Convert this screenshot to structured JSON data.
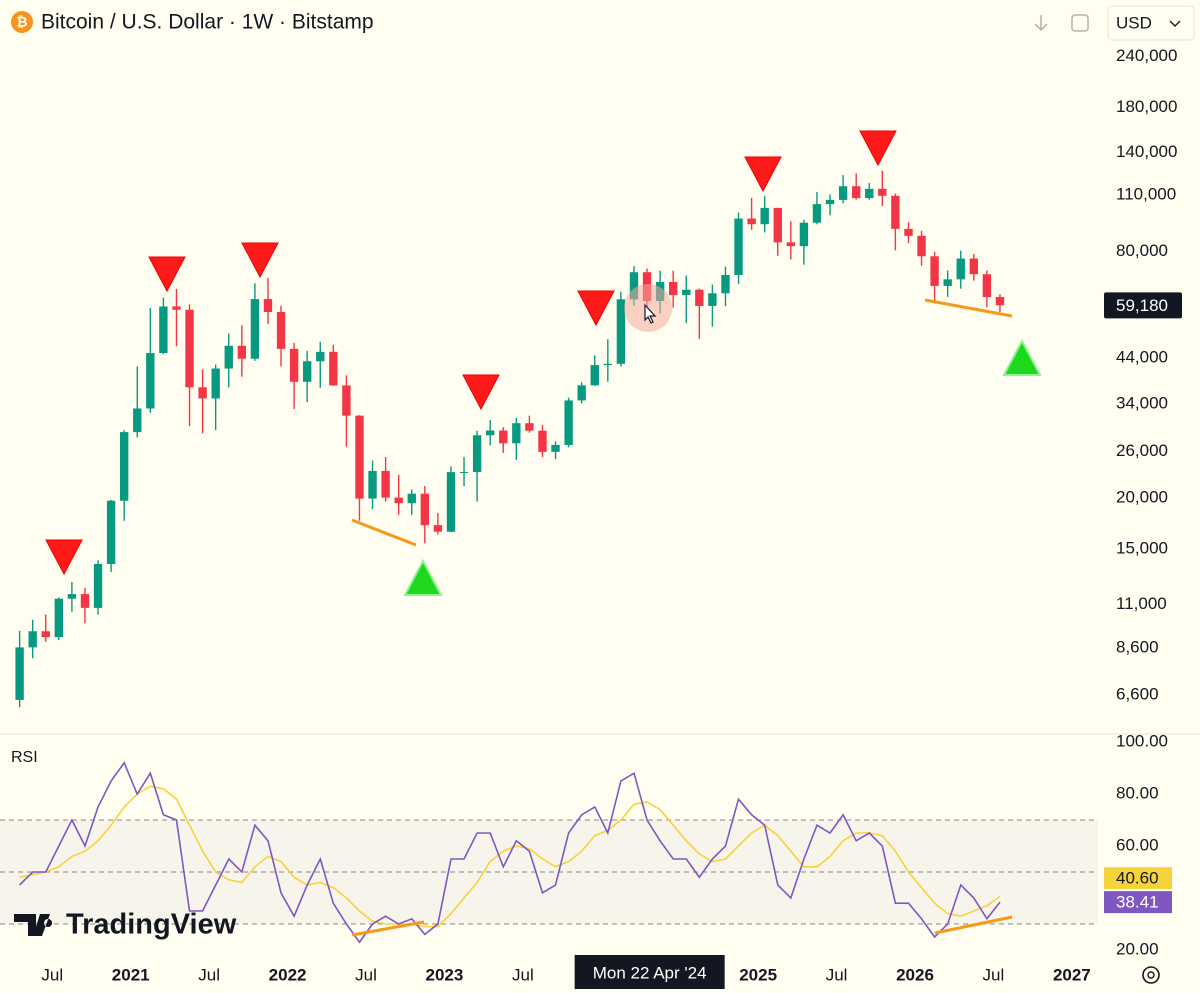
{
  "header": {
    "title": "Bitcoin / U.S. Dollar · 1W · Bitstamp",
    "currency": "USD"
  },
  "watermark": "TradingView",
  "chart_data": [
    {
      "type": "candlestick",
      "x": [
        "2020-04",
        "2020-05",
        "2020-06",
        "2020-07",
        "2020-08",
        "2020-09",
        "2020-10",
        "2020-11",
        "2020-12",
        "2021-01",
        "2021-02",
        "2021-03",
        "2021-04",
        "2021-05",
        "2021-06",
        "2021-07",
        "2021-08",
        "2021-09",
        "2021-10",
        "2021-11",
        "2021-12",
        "2022-01",
        "2022-02",
        "2022-03",
        "2022-04",
        "2022-05",
        "2022-06",
        "2022-07",
        "2022-08",
        "2022-09",
        "2022-10",
        "2022-11",
        "2022-12",
        "2023-01",
        "2023-02",
        "2023-03",
        "2023-04",
        "2023-05",
        "2023-06",
        "2023-07",
        "2023-08",
        "2023-09",
        "2023-10",
        "2023-11",
        "2023-12",
        "2024-01",
        "2024-02",
        "2024-03",
        "2024-04",
        "2024-05",
        "2024-06",
        "2024-07",
        "2024-08",
        "2024-09",
        "2024-10",
        "2024-11",
        "2024-12",
        "2025-01",
        "2025-02",
        "2025-03",
        "2025-04",
        "2025-05",
        "2025-06",
        "2025-07",
        "2025-08",
        "2025-09",
        "2025-10",
        "2025-11",
        "2025-12",
        "2026-01",
        "2026-02",
        "2026-03",
        "2026-04",
        "2026-05",
        "2026-06",
        "2026-07"
      ],
      "open": [
        6420,
        8630,
        9450,
        9140,
        11350,
        11650,
        10780,
        13800,
        19700,
        28990,
        33110,
        45240,
        58800,
        57720,
        37300,
        35040,
        41460,
        47130,
        43820,
        61300,
        57000,
        46310,
        38480,
        43190,
        45540,
        37700,
        31800,
        19940,
        23300,
        20050,
        19430,
        20500,
        17170,
        16550,
        23140,
        23150,
        28480,
        29250,
        27220,
        30480,
        29230,
        25940,
        26970,
        34650,
        37720,
        42280,
        42580,
        61200,
        71300,
        60640,
        67500,
        62680,
        64620,
        58970,
        63330,
        70220,
        96450,
        93430,
        102400,
        84350,
        82550,
        94200,
        104600,
        107100,
        115700,
        108200,
        114000,
        109600,
        91000,
        87500,
        78000,
        66000,
        68500,
        77000,
        70500,
        62000
      ],
      "high": [
        9470,
        10080,
        10380,
        11430,
        12470,
        12070,
        14100,
        19800,
        29300,
        41950,
        58350,
        61800,
        64900,
        59500,
        41300,
        42400,
        50500,
        52900,
        67000,
        69000,
        59000,
        47900,
        45800,
        48200,
        47400,
        39900,
        31900,
        24700,
        25200,
        22800,
        21000,
        21400,
        18400,
        23900,
        25200,
        29200,
        31000,
        29800,
        31400,
        31800,
        30200,
        27500,
        35200,
        38400,
        44700,
        48900,
        63900,
        73800,
        72800,
        71900,
        71900,
        70000,
        65000,
        66500,
        73600,
        99800,
        108300,
        109400,
        102500,
        95000,
        95800,
        112000,
        110500,
        123200,
        124400,
        117900,
        126200,
        111000,
        94500,
        90000,
        80000,
        72000,
        80500,
        79000,
        72000,
        63000
      ],
      "low": [
        6160,
        8120,
        8900,
        8990,
        10540,
        9880,
        10380,
        13200,
        17600,
        28130,
        32300,
        45000,
        47000,
        30000,
        28800,
        29300,
        37300,
        39600,
        43300,
        53300,
        42000,
        33000,
        34300,
        37200,
        37600,
        26700,
        17600,
        18800,
        19600,
        18200,
        18200,
        15500,
        16300,
        16500,
        21400,
        19600,
        26900,
        25800,
        24800,
        28900,
        25200,
        24900,
        26600,
        34100,
        37600,
        38500,
        41900,
        59000,
        56500,
        56600,
        58400,
        53500,
        49000,
        52500,
        58900,
        66800,
        90500,
        89200,
        78200,
        76600,
        74400,
        93400,
        98200,
        105100,
        107300,
        107300,
        103500,
        80600,
        84000,
        74000,
        60000,
        62000,
        65000,
        68000,
        58500,
        57000
      ],
      "close": [
        8630,
        9450,
        9140,
        11350,
        11650,
        10780,
        13800,
        19700,
        28990,
        33110,
        45240,
        58800,
        57720,
        37300,
        35040,
        41460,
        47130,
        43820,
        61300,
        57000,
        46310,
        38480,
        43190,
        45540,
        37700,
        31800,
        19940,
        23300,
        20050,
        19430,
        20500,
        17170,
        16550,
        23140,
        23150,
        28480,
        29250,
        27220,
        30480,
        29230,
        25940,
        26970,
        34650,
        37720,
        42280,
        42580,
        61200,
        71300,
        60640,
        67500,
        62680,
        64620,
        58970,
        63330,
        70220,
        96450,
        93430,
        102400,
        84350,
        82550,
        94200,
        104600,
        107100,
        115700,
        108200,
        114000,
        109600,
        91000,
        87500,
        78000,
        66000,
        68500,
        77000,
        70500,
        62000,
        59180
      ],
      "up_color": "#089981",
      "down_color": "#f23645",
      "log_scale": true,
      "grid": false,
      "ylim": [
        5330,
        330000
      ],
      "yticks": [
        {
          "value": 240000,
          "label": "240,000"
        },
        {
          "value": 180000,
          "label": "180,000"
        },
        {
          "value": 140000,
          "label": "140,000"
        },
        {
          "value": 110000,
          "label": "110,000"
        },
        {
          "value": 80000,
          "label": "80,000"
        },
        {
          "value": 44000,
          "label": "44,000"
        },
        {
          "value": 34000,
          "label": "34,000"
        },
        {
          "value": 26000,
          "label": "26,000"
        },
        {
          "value": 20000,
          "label": "20,000"
        },
        {
          "value": 15000,
          "label": "15,000"
        },
        {
          "value": 11000,
          "label": "11,000"
        },
        {
          "value": 8600,
          "label": "8,600"
        },
        {
          "value": 6600,
          "label": "6,600"
        }
      ],
      "last_price": {
        "value": 59180,
        "label": "59,180"
      },
      "xlim": [
        "2020-03",
        "2027-03"
      ],
      "xticks": [
        {
          "value": "2020-07",
          "label": "Jul"
        },
        {
          "value": "2021-01",
          "label": "2021"
        },
        {
          "value": "2021-07",
          "label": "Jul"
        },
        {
          "value": "2022-01",
          "label": "2022"
        },
        {
          "value": "2022-07",
          "label": "Jul"
        },
        {
          "value": "2023-01",
          "label": "2023"
        },
        {
          "value": "2023-07",
          "label": "Jul"
        },
        {
          "value": "2025-01",
          "label": "2025"
        },
        {
          "value": "2025-07",
          "label": "Jul"
        },
        {
          "value": "2026-01",
          "label": "2026"
        },
        {
          "value": "2026-07",
          "label": "Jul"
        },
        {
          "value": "2027-01",
          "label": "2027"
        }
      ],
      "crosshair": {
        "x": "2024-04",
        "label": "Mon 22 Apr '24"
      }
    },
    {
      "type": "line",
      "title": "RSI",
      "x": [
        "2020-04",
        "2020-05",
        "2020-06",
        "2020-07",
        "2020-08",
        "2020-09",
        "2020-10",
        "2020-11",
        "2020-12",
        "2021-01",
        "2021-02",
        "2021-03",
        "2021-04",
        "2021-05",
        "2021-06",
        "2021-07",
        "2021-08",
        "2021-09",
        "2021-10",
        "2021-11",
        "2021-12",
        "2022-01",
        "2022-02",
        "2022-03",
        "2022-04",
        "2022-05",
        "2022-06",
        "2022-07",
        "2022-08",
        "2022-09",
        "2022-10",
        "2022-11",
        "2022-12",
        "2023-01",
        "2023-02",
        "2023-03",
        "2023-04",
        "2023-05",
        "2023-06",
        "2023-07",
        "2023-08",
        "2023-09",
        "2023-10",
        "2023-11",
        "2023-12",
        "2024-01",
        "2024-02",
        "2024-03",
        "2024-04",
        "2024-05",
        "2024-06",
        "2024-07",
        "2024-08",
        "2024-09",
        "2024-10",
        "2024-11",
        "2024-12",
        "2025-01",
        "2025-02",
        "2025-03",
        "2025-04",
        "2025-05",
        "2025-06",
        "2025-07",
        "2025-08",
        "2025-09",
        "2025-10",
        "2025-11",
        "2025-12",
        "2026-01",
        "2026-02",
        "2026-03",
        "2026-04",
        "2026-05",
        "2026-06",
        "2026-07"
      ],
      "series": [
        {
          "color": "#f5d33b",
          "values": [
            48,
            49,
            50,
            52,
            56,
            58,
            62,
            68,
            75,
            80,
            83,
            82,
            78,
            68,
            58,
            50,
            47,
            46,
            52,
            56,
            54,
            48,
            45,
            46,
            44,
            40,
            35,
            31,
            30,
            30,
            30,
            29,
            29,
            34,
            40,
            46,
            54,
            58,
            60,
            59,
            55,
            52,
            54,
            58,
            64,
            66,
            70,
            76,
            77,
            74,
            68,
            62,
            57,
            54,
            55,
            60,
            65,
            68,
            64,
            58,
            52,
            52,
            56,
            62,
            65,
            65,
            64,
            58,
            50,
            44,
            38,
            34,
            33,
            35,
            37,
            40.6
          ],
          "current": {
            "value": 40.6,
            "label": "40.60"
          }
        },
        {
          "color": "#7e57c2",
          "values": [
            45,
            50,
            50,
            60,
            70,
            60,
            75,
            85,
            92,
            80,
            88,
            72,
            70,
            35,
            35,
            45,
            55,
            50,
            68,
            62,
            42,
            33,
            45,
            55,
            38,
            30,
            23,
            30,
            33,
            30,
            32,
            26,
            30,
            55,
            55,
            65,
            65,
            52,
            62,
            58,
            42,
            45,
            65,
            72,
            75,
            65,
            85,
            88,
            70,
            62,
            55,
            55,
            48,
            55,
            60,
            78,
            72,
            68,
            45,
            40,
            55,
            68,
            65,
            72,
            62,
            65,
            60,
            38,
            38,
            32,
            25,
            30,
            45,
            40,
            32,
            38.41
          ],
          "current": {
            "value": 38.41,
            "label": "38.41"
          }
        }
      ],
      "ylim": [
        20,
        100
      ],
      "yticks": [
        {
          "value": 100,
          "label": "100.00"
        },
        {
          "value": 80,
          "label": "80.00"
        },
        {
          "value": 60,
          "label": "60.00"
        },
        {
          "value": 20,
          "label": "20.00"
        }
      ],
      "levels": [
        70,
        50,
        30
      ],
      "band": [
        30,
        70
      ]
    }
  ]
}
